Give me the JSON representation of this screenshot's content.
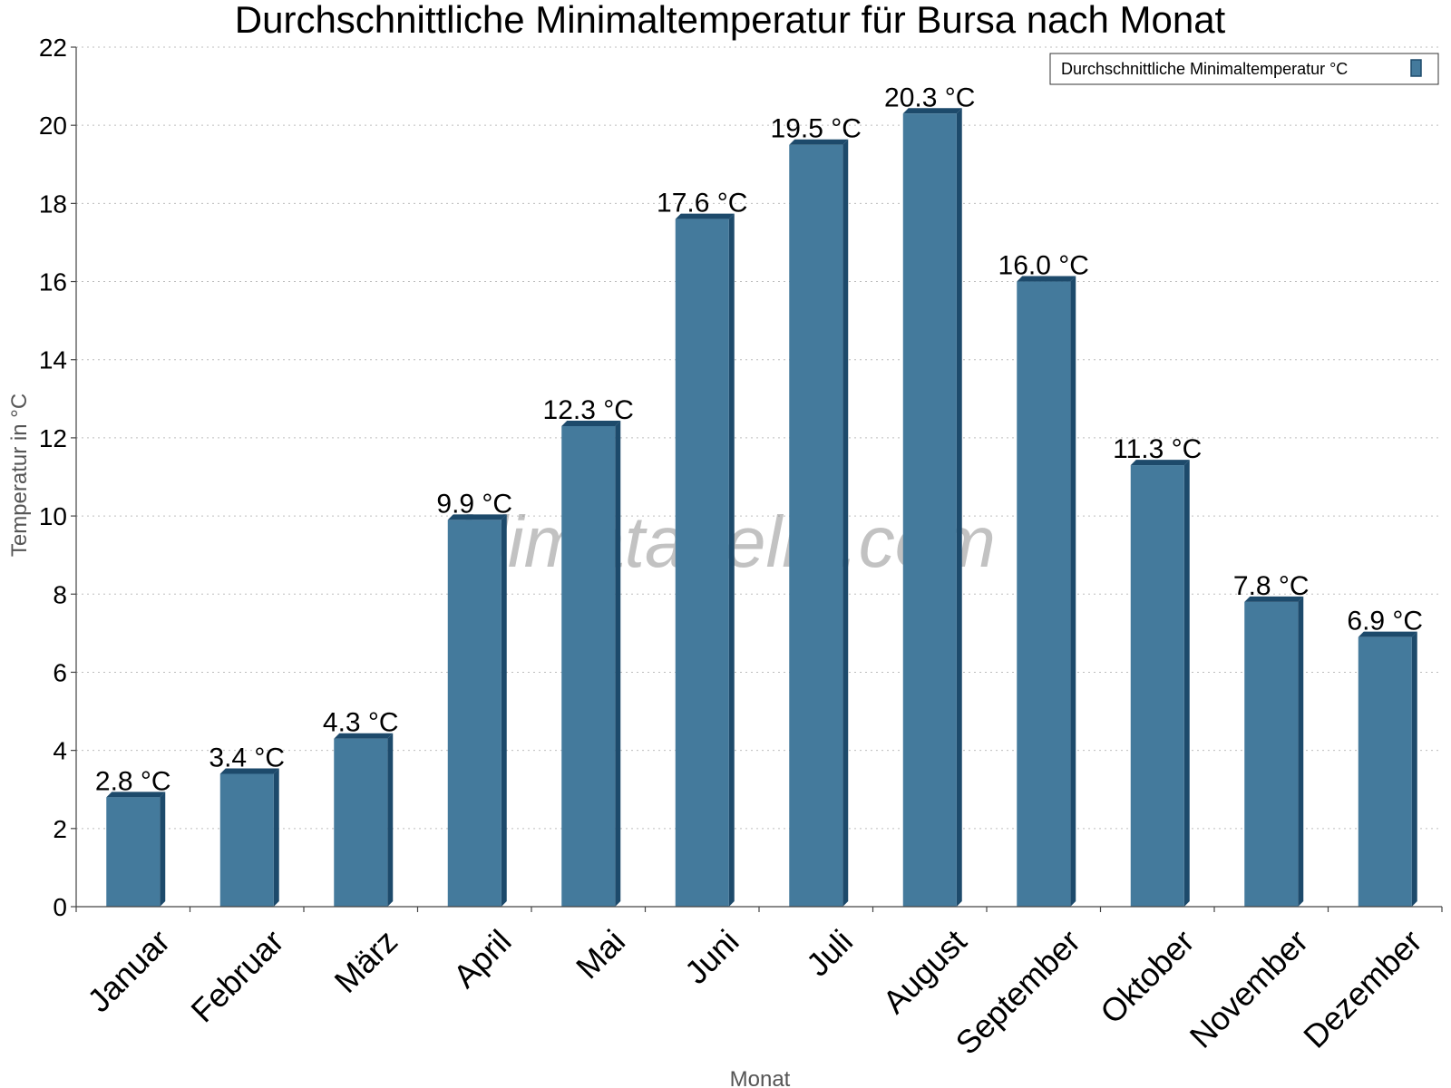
{
  "chart_data": {
    "type": "bar",
    "title": "Durchschnittliche Minimaltemperatur für Bursa nach Monat",
    "xlabel": "Monat",
    "ylabel": "Temperatur in °C",
    "categories": [
      "Januar",
      "Februar",
      "März",
      "April",
      "Mai",
      "Juni",
      "Juli",
      "August",
      "September",
      "Oktober",
      "November",
      "Dezember"
    ],
    "series": [
      {
        "name": "Durchschnittliche Minimaltemperatur °C",
        "values": [
          2.8,
          3.4,
          4.3,
          9.9,
          12.3,
          17.6,
          19.5,
          20.3,
          16.0,
          11.3,
          7.8,
          6.9
        ],
        "data_labels": [
          "2.8 °C",
          "3.4 °C",
          "4.3 °C",
          "9.9 °C",
          "12.3 °C",
          "17.6 °C",
          "19.5 °C",
          "20.3 °C",
          "16.0 °C",
          "11.3 °C",
          "7.8 °C",
          "6.9 °C"
        ]
      }
    ],
    "ylim": [
      0,
      22
    ],
    "yticks": [
      0,
      2,
      4,
      6,
      8,
      10,
      12,
      14,
      16,
      18,
      20,
      22
    ],
    "grid": true,
    "legend_position": "top-right",
    "colors": {
      "bar": "#447a9c",
      "bar_side": "#1d4a6b",
      "bar_top": "#1d4a6b"
    },
    "watermark": "klimatabelle.com"
  }
}
